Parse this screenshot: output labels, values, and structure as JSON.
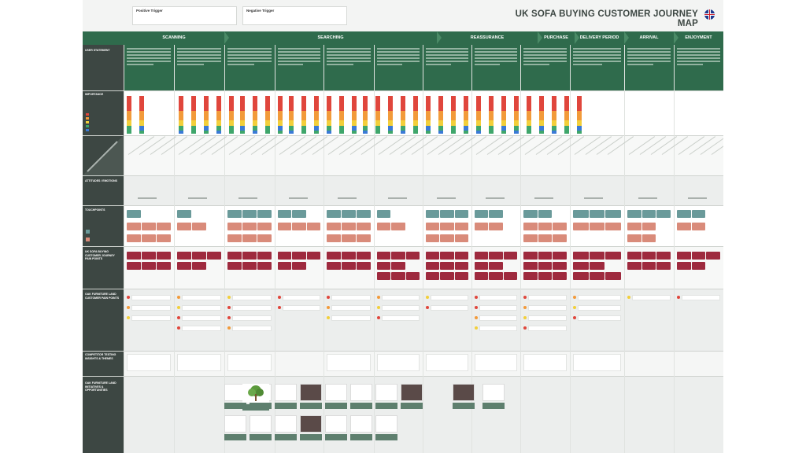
{
  "title": "UK SOFA BUYING CUSTOMER JOURNEY MAP",
  "triggers": [
    {
      "label": "Positive Trigger"
    },
    {
      "label": "Negative Trigger"
    }
  ],
  "stages": [
    "SCANNING",
    "SEARCHING",
    "REASSURANCE",
    "PURCHASE",
    "DELIVERY PERIOD",
    "ARRIVAL",
    "ENJOYMENT"
  ],
  "rows": [
    {
      "label": "USER STATEMENT"
    },
    {
      "label": "IMPORTANCE"
    },
    {
      "label": ""
    },
    {
      "label": "ATTITUDES / EMOTIONS"
    },
    {
      "label": "TOUCHPOINTS"
    },
    {
      "label": "UK SOFA BUYING CUSTOMER JOURNEY PAIN POINTS"
    },
    {
      "label": "OAK FURNITURE LAND CUSTOMER PAIN POINTS"
    },
    {
      "label": "COMPETITOR TESTING INSIGHTS & THEMES"
    },
    {
      "label": "OAK FURNITURE LAND INITIATIVES & OPPORTUNITIES"
    }
  ],
  "colors": {
    "stage_bar": "#2f6b4c",
    "left_column": "#3d4743",
    "statement_band": "#2f6b4c",
    "importance_red": "#e0463c",
    "importance_orange": "#f29a3a",
    "importance_yellow": "#f2cf3a",
    "importance_green": "#3fa66b",
    "importance_blue": "#3a7ad6",
    "touchpoint_teal": "#6a9a9a",
    "touchpoint_salmon": "#d98b7a",
    "pain_crimson": "#9e2a3e"
  },
  "icons": [
    "uk-flag-icon",
    "tree-logo-icon"
  ]
}
